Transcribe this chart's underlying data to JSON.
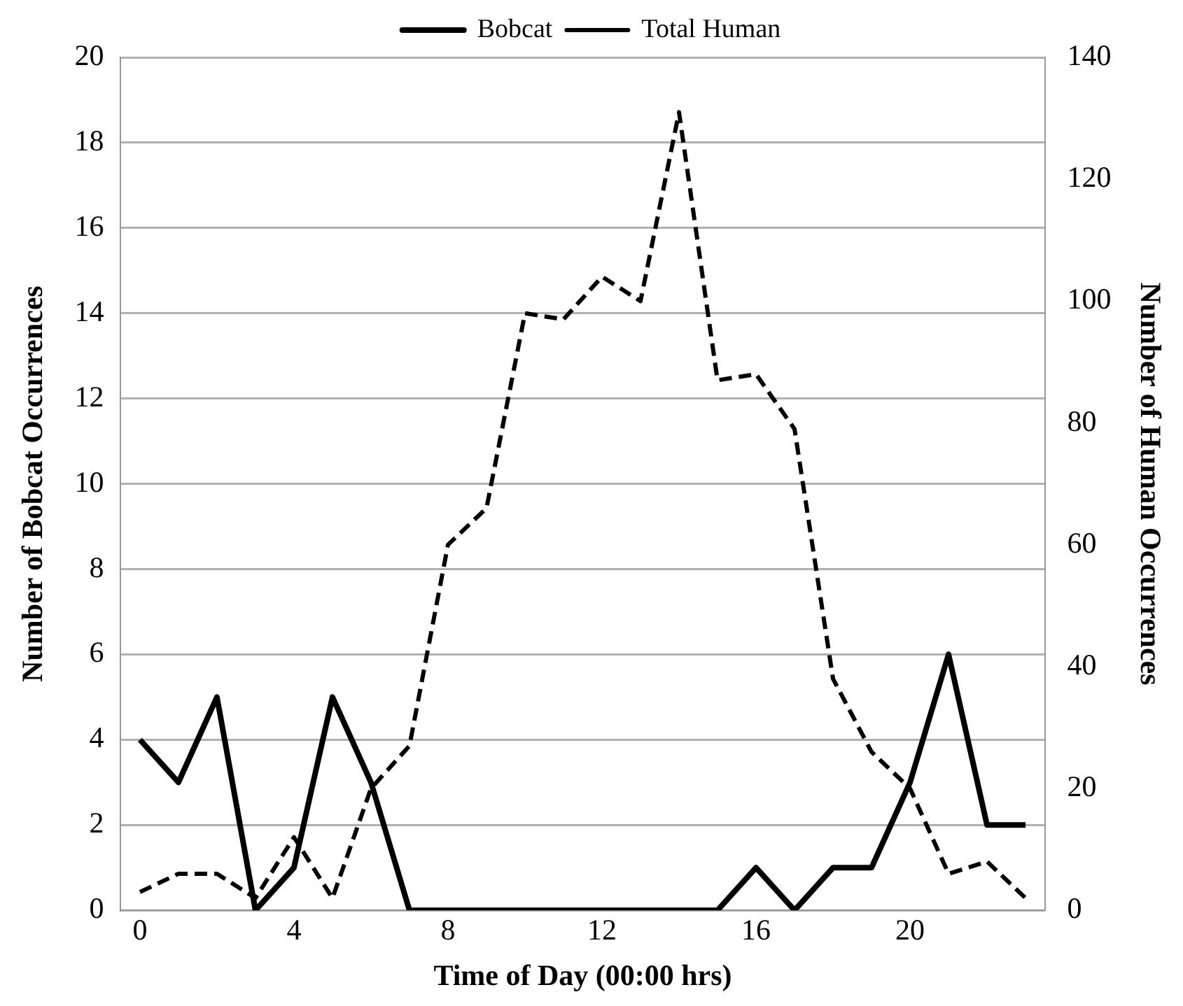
{
  "chart_data": {
    "type": "line",
    "xlabel": "Time of Day (00:00 hrs)",
    "ylabel": "Number of Bobcat Occurrences",
    "y2label": "Number of Human Occurrences",
    "x": [
      0,
      1,
      2,
      3,
      4,
      5,
      6,
      7,
      8,
      9,
      10,
      11,
      12,
      13,
      14,
      15,
      16,
      17,
      18,
      19,
      20,
      21,
      22,
      23
    ],
    "series": [
      {
        "name": "Bobcat",
        "color": "#000000",
        "line_style": "solid",
        "values": [
          4,
          3,
          5,
          0,
          1,
          5,
          3,
          0,
          0,
          0,
          0,
          0,
          0,
          0,
          0,
          0,
          1,
          0,
          1,
          1,
          3,
          6,
          2,
          2
        ]
      },
      {
        "name": "Total Human",
        "color": "#000000",
        "line_style": "dashed",
        "axis": "y2",
        "values": [
          3,
          6,
          6,
          2,
          12,
          2,
          20,
          27,
          60,
          66,
          98,
          97,
          104,
          100,
          131,
          87,
          88,
          79,
          38,
          26,
          20,
          6,
          8,
          2
        ]
      }
    ],
    "xlim": [
      -0.5,
      23.5
    ],
    "xticks": [
      0,
      4,
      8,
      12,
      16,
      20
    ],
    "ylim": [
      0,
      20
    ],
    "yticks": [
      0,
      2,
      4,
      6,
      8,
      10,
      12,
      14,
      16,
      18,
      20
    ],
    "y2lim": [
      0,
      140
    ],
    "y2ticks": [
      0,
      20,
      40,
      60,
      80,
      100,
      120,
      140
    ],
    "grid": "y",
    "legend": "top",
    "marker": "none"
  }
}
